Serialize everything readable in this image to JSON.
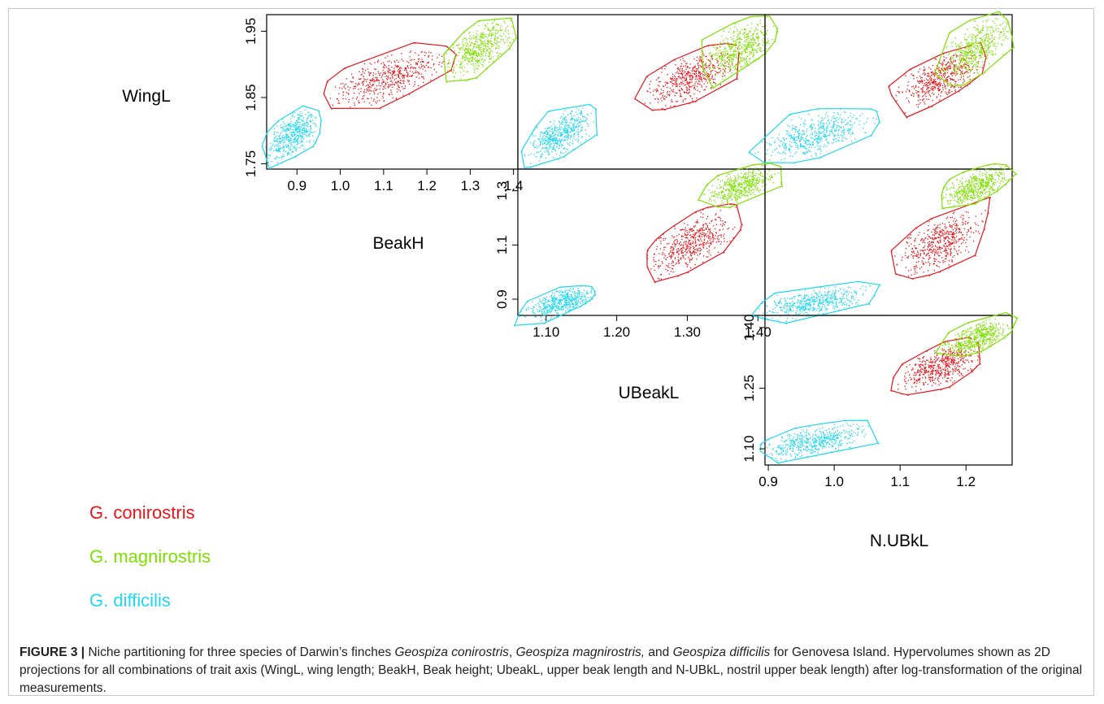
{
  "colors": {
    "G. conirostris": "#e8141b",
    "G. magnirostris": "#7ee000",
    "G. difficilis": "#1ed8ee"
  },
  "chart_data": {
    "type": "scatter",
    "subtype": "pairs-matrix",
    "traits": [
      "WingL",
      "BeakH",
      "UBeakL",
      "N.UBkL"
    ],
    "species": [
      {
        "name": "G. conirostris",
        "centroid": {
          "WingL": 1.88,
          "BeakH": 1.11,
          "UBeakL": 1.305,
          "N.UBkL": 1.16
        }
      },
      {
        "name": "G. magnirostris",
        "centroid": {
          "WingL": 1.925,
          "BeakH": 1.32,
          "UBeakL": 1.375,
          "N.UBkL": 1.215
        }
      },
      {
        "name": "G. difficilis",
        "centroid": {
          "WingL": 1.795,
          "BeakH": 0.89,
          "UBeakL": 1.12,
          "N.UBkL": 0.97
        }
      }
    ],
    "panels": [
      {
        "id": "p-beakh-wingl",
        "x": "BeakH",
        "y": "WingL",
        "xticks": [
          "0.9",
          "1.0",
          "1.1",
          "1.2",
          "1.3",
          "1.4"
        ],
        "yticks": [
          "1.75",
          "1.85",
          "1.95"
        ]
      },
      {
        "id": "p-ubeakl-wingl",
        "x": "UBeakL",
        "y": "WingL"
      },
      {
        "id": "p-nubkl-wingl",
        "x": "N.UBkL",
        "y": "WingL"
      },
      {
        "id": "p-ubeakl-beakh",
        "x": "UBeakL",
        "y": "BeakH",
        "xticks": [
          "1.10",
          "1.20",
          "1.30",
          "1.40"
        ],
        "yticks": [
          "0.9",
          "1.1",
          "1.3"
        ]
      },
      {
        "id": "p-nubkl-beakh",
        "x": "N.UBkL",
        "y": "BeakH"
      },
      {
        "id": "p-nubkl-ubeakl",
        "x": "N.UBkL",
        "y": "UBeakL",
        "xticks": [
          "0.9",
          "1.0",
          "1.1",
          "1.2"
        ],
        "yticks": [
          "1.10",
          "1.25",
          "1.40"
        ]
      }
    ],
    "grid": false,
    "legend_position": "bottom-left"
  },
  "legend": [
    "G. conirostris",
    "G. magnirostris",
    "G. difficilis"
  ],
  "caption": {
    "label": "FIGURE 3 |",
    "t1": " Niche partitioning for three species of Darwin’s finches ",
    "sp1": "Geospiza conirostris",
    "t2": ", ",
    "sp2": "Geospiza magnirostris,",
    "t3": " and ",
    "sp3": "Geospiza difficilis",
    "t4": " for Genovesa Island. Hypervolumes shown as 2D projections for all combinations of trait axis (WingL, wing length; BeakH, Beak height; UbeakL, upper beak length and N-UBkL, nostril upper beak length) after log-transformation of the original measurements."
  }
}
